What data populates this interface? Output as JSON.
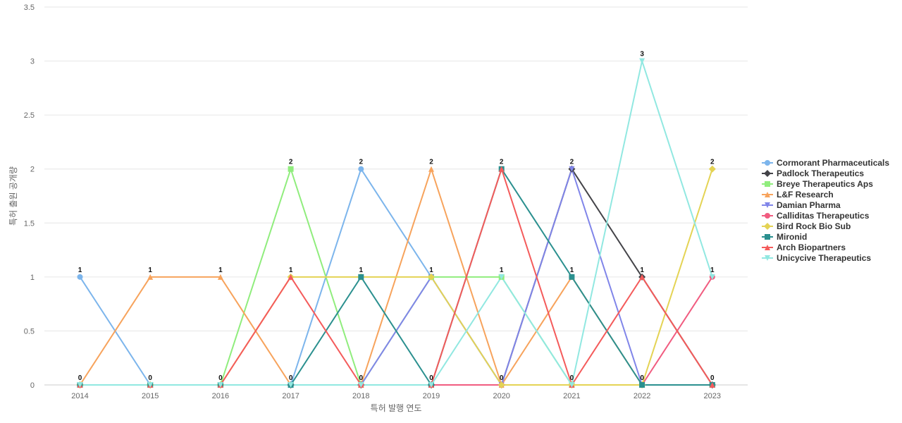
{
  "chart_data": {
    "type": "line",
    "xlabel": "특허 발행 연도",
    "ylabel": "특허 출원 공개량",
    "ylim": [
      0,
      3.5
    ],
    "yticks": [
      "0",
      "0.5",
      "1",
      "1.5",
      "2",
      "2.5",
      "3",
      "3.5"
    ],
    "categories": [
      "2014",
      "2015",
      "2016",
      "2017",
      "2018",
      "2019",
      "2020",
      "2021",
      "2022",
      "2023"
    ],
    "grid": "horizontal",
    "legend_position": "right",
    "series": [
      {
        "name": "Cormorant Pharmaceuticals",
        "color": "#7cb5ec",
        "marker": "circle",
        "values": [
          1,
          0,
          0,
          0,
          2,
          1,
          0,
          0,
          0,
          0
        ]
      },
      {
        "name": "Padlock Therapeutics",
        "color": "#434348",
        "marker": "diamond",
        "values": [
          0,
          0,
          0,
          0,
          0,
          0,
          0,
          2,
          1,
          0
        ]
      },
      {
        "name": "Breye Therapeutics Aps",
        "color": "#90ed7d",
        "marker": "square",
        "values": [
          0,
          0,
          0,
          2,
          0,
          1,
          1,
          0,
          0,
          0
        ]
      },
      {
        "name": "L&F Research",
        "color": "#f7a35c",
        "marker": "triangle",
        "values": [
          0,
          1,
          1,
          0,
          0,
          2,
          0,
          1,
          0,
          0
        ]
      },
      {
        "name": "Damian Pharma",
        "color": "#8085e9",
        "marker": "triangle-down",
        "values": [
          0,
          0,
          0,
          0,
          0,
          1,
          0,
          2,
          0,
          0
        ]
      },
      {
        "name": "Calliditas Therapeutics",
        "color": "#f15c80",
        "marker": "circle",
        "values": [
          0,
          0,
          0,
          0,
          0,
          0,
          0,
          0,
          0,
          1
        ]
      },
      {
        "name": "Bird Rock Bio Sub",
        "color": "#e4d354",
        "marker": "diamond",
        "values": [
          0,
          0,
          0,
          1,
          1,
          1,
          0,
          0,
          0,
          2
        ]
      },
      {
        "name": "Mironid",
        "color": "#2b908f",
        "marker": "square",
        "values": [
          0,
          0,
          0,
          0,
          1,
          0,
          2,
          1,
          0,
          0
        ]
      },
      {
        "name": "Arch Biopartners",
        "color": "#f45b5b",
        "marker": "triangle",
        "values": [
          0,
          0,
          0,
          1,
          0,
          0,
          2,
          0,
          1,
          0
        ]
      },
      {
        "name": "Unicycive Therapeutics",
        "color": "#91e8e1",
        "marker": "triangle-down",
        "values": [
          0,
          0,
          0,
          0,
          0,
          0,
          1,
          0,
          3,
          1
        ]
      }
    ],
    "data_labels": [
      {
        "x": "2014",
        "value": "1",
        "y": 1
      },
      {
        "x": "2014",
        "value": "0",
        "y": 0
      },
      {
        "x": "2015",
        "value": "1",
        "y": 1
      },
      {
        "x": "2015",
        "value": "0",
        "y": 0
      },
      {
        "x": "2016",
        "value": "1",
        "y": 1
      },
      {
        "x": "2016",
        "value": "0",
        "y": 0
      },
      {
        "x": "2017",
        "value": "2",
        "y": 2
      },
      {
        "x": "2017",
        "value": "1",
        "y": 1
      },
      {
        "x": "2017",
        "value": "0",
        "y": 0
      },
      {
        "x": "2018",
        "value": "2",
        "y": 2
      },
      {
        "x": "2018",
        "value": "1",
        "y": 1
      },
      {
        "x": "2018",
        "value": "0",
        "y": 0
      },
      {
        "x": "2019",
        "value": "2",
        "y": 2
      },
      {
        "x": "2019",
        "value": "1",
        "y": 1
      },
      {
        "x": "2019",
        "value": "0",
        "y": 0
      },
      {
        "x": "2020",
        "value": "2",
        "y": 2
      },
      {
        "x": "2020",
        "value": "1",
        "y": 1
      },
      {
        "x": "2020",
        "value": "0",
        "y": 0
      },
      {
        "x": "2021",
        "value": "2",
        "y": 2
      },
      {
        "x": "2021",
        "value": "1",
        "y": 1
      },
      {
        "x": "2021",
        "value": "0",
        "y": 0
      },
      {
        "x": "2022",
        "value": "3",
        "y": 3
      },
      {
        "x": "2022",
        "value": "1",
        "y": 1
      },
      {
        "x": "2022",
        "value": "0",
        "y": 0
      },
      {
        "x": "2023",
        "value": "2",
        "y": 2
      },
      {
        "x": "2023",
        "value": "1",
        "y": 1
      },
      {
        "x": "2023",
        "value": "0",
        "y": 0
      }
    ]
  }
}
